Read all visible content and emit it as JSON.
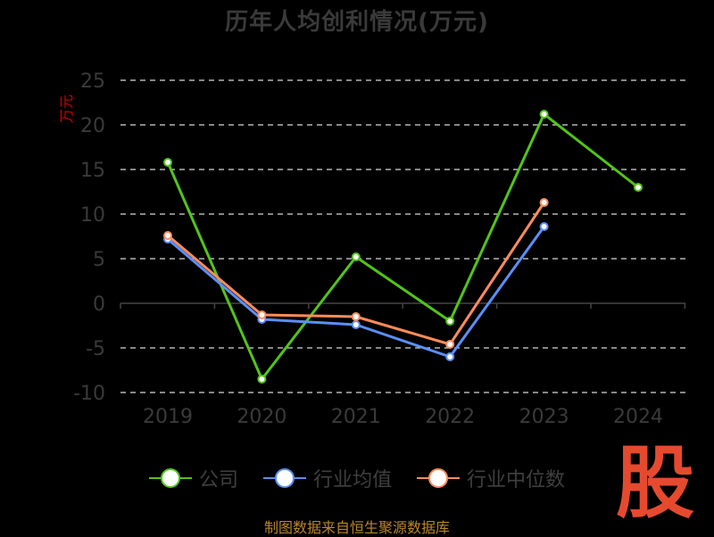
{
  "chart_data": {
    "type": "line",
    "title": "历年人均创利情况(万元)",
    "ylabel": "万元",
    "xlabel": "",
    "categories": [
      "2019",
      "2020",
      "2021",
      "2022",
      "2023",
      "2024"
    ],
    "ylim": [
      -10,
      25
    ],
    "yticks": [
      25,
      20,
      15,
      10,
      5,
      0,
      -5,
      -10
    ],
    "grid": true,
    "legend_position": "bottom",
    "series": [
      {
        "name": "公司",
        "color": "#52c41a",
        "values": [
          15.8,
          -8.5,
          5.2,
          -2.0,
          21.2,
          13.0
        ]
      },
      {
        "name": "行业均值",
        "color": "#5b8ff9",
        "values": [
          7.2,
          -1.8,
          -2.4,
          -6.0,
          8.6,
          null
        ]
      },
      {
        "name": "行业中位数",
        "color": "#ff8c5a",
        "values": [
          7.6,
          -1.3,
          -1.5,
          -4.6,
          11.3,
          null
        ]
      }
    ]
  },
  "logo_text": "股",
  "source": "制图数据来自恒生聚源数据库"
}
